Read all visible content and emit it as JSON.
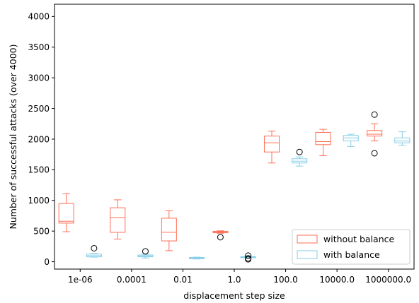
{
  "chart_data": {
    "type": "box",
    "xlabel": "displacement step size",
    "ylabel": "Number of successful attacks (over 4000)",
    "ylim": [
      -120,
      4200
    ],
    "yticks": [
      0,
      500,
      1000,
      1500,
      2000,
      2500,
      3000,
      3500,
      4000
    ],
    "categories": [
      "1e-06",
      "0.0001",
      "0.01",
      "1.0",
      "100.0",
      "10000.0",
      "1000000.0"
    ],
    "grid": false,
    "legend_position": "lower-right",
    "series": [
      {
        "name": "without balance",
        "color": "#ff6e54",
        "boxes": [
          {
            "whisker_low": 490,
            "q1": 630,
            "median": 660,
            "q3": 950,
            "whisker_high": 1110,
            "outliers": []
          },
          {
            "whisker_low": 370,
            "q1": 480,
            "median": 720,
            "q3": 880,
            "whisker_high": 1010,
            "outliers": []
          },
          {
            "whisker_low": 180,
            "q1": 340,
            "median": 480,
            "q3": 710,
            "whisker_high": 830,
            "outliers": []
          },
          {
            "whisker_low": 465,
            "q1": 475,
            "median": 485,
            "q3": 495,
            "whisker_high": 505,
            "outliers": [
              400
            ]
          },
          {
            "whisker_low": 1610,
            "q1": 1790,
            "median": 1940,
            "q3": 2050,
            "whisker_high": 2130,
            "outliers": []
          },
          {
            "whisker_low": 1730,
            "q1": 1910,
            "median": 1960,
            "q3": 2110,
            "whisker_high": 2160,
            "outliers": []
          },
          {
            "whisker_low": 1970,
            "q1": 2050,
            "median": 2080,
            "q3": 2140,
            "whisker_high": 2250,
            "outliers": [
              2400,
              1770
            ]
          }
        ]
      },
      {
        "name": "with balance",
        "color": "#87cee8",
        "boxes": [
          {
            "whisker_low": 75,
            "q1": 80,
            "median": 100,
            "q3": 125,
            "whisker_high": 135,
            "outliers": [
              220
            ]
          },
          {
            "whisker_low": 60,
            "q1": 80,
            "median": 95,
            "q3": 110,
            "whisker_high": 125,
            "outliers": [
              170
            ]
          },
          {
            "whisker_low": 45,
            "q1": 50,
            "median": 60,
            "q3": 70,
            "whisker_high": 75,
            "outliers": []
          },
          {
            "whisker_low": 60,
            "q1": 65,
            "median": 75,
            "q3": 85,
            "whisker_high": 95,
            "outliers": [
              40,
              55,
              100
            ]
          },
          {
            "whisker_low": 1560,
            "q1": 1610,
            "median": 1640,
            "q3": 1680,
            "whisker_high": 1710,
            "outliers": [
              1790
            ]
          },
          {
            "whisker_low": 1880,
            "q1": 1970,
            "median": 2020,
            "q3": 2060,
            "whisker_high": 2080,
            "outliers": []
          },
          {
            "whisker_low": 1900,
            "q1": 1940,
            "median": 1970,
            "q3": 2020,
            "whisker_high": 2120,
            "outliers": []
          }
        ]
      }
    ]
  }
}
